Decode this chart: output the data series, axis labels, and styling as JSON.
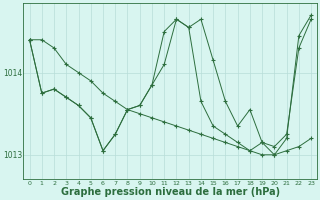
{
  "background_color": "#d8f5f0",
  "grid_color": "#b8ddd8",
  "line_color": "#2d6e3e",
  "xlabel": "Graphe pression niveau de la mer (hPa)",
  "xlabel_fontsize": 7,
  "xlim": [
    -0.5,
    23.5
  ],
  "ylim": [
    1012.7,
    1014.85
  ],
  "yticks": [
    1013,
    1014
  ],
  "xticks": [
    0,
    1,
    2,
    3,
    4,
    5,
    6,
    7,
    8,
    9,
    10,
    11,
    12,
    13,
    14,
    15,
    16,
    17,
    18,
    19,
    20,
    21,
    22,
    23
  ],
  "series": [
    [
      1014.4,
      1014.4,
      1014.3,
      1014.1,
      1014.0,
      1013.9,
      1013.75,
      1013.65,
      1013.55,
      1013.5,
      1013.45,
      1013.4,
      1013.35,
      1013.3,
      1013.25,
      1013.2,
      1013.15,
      1013.1,
      1013.05,
      1013.0,
      1013.0,
      1013.05,
      1013.1,
      1013.2
    ],
    [
      1014.4,
      1013.75,
      1013.8,
      1013.7,
      1013.6,
      1013.45,
      1013.05,
      1013.25,
      1013.55,
      1013.6,
      1013.85,
      1014.5,
      1014.65,
      1014.55,
      1013.65,
      1013.35,
      1013.25,
      1013.15,
      1013.05,
      1013.15,
      1013.1,
      1013.25,
      1014.3,
      1014.65
    ],
    [
      1014.4,
      1013.75,
      1013.8,
      1013.7,
      1013.6,
      1013.45,
      1013.05,
      1013.25,
      1013.55,
      1013.6,
      1013.85,
      1014.1,
      1014.65,
      1014.55,
      1014.65,
      1014.15,
      1013.65,
      1013.35,
      1013.55,
      1013.15,
      1013.0,
      1013.2,
      1014.45,
      1014.7
    ]
  ]
}
